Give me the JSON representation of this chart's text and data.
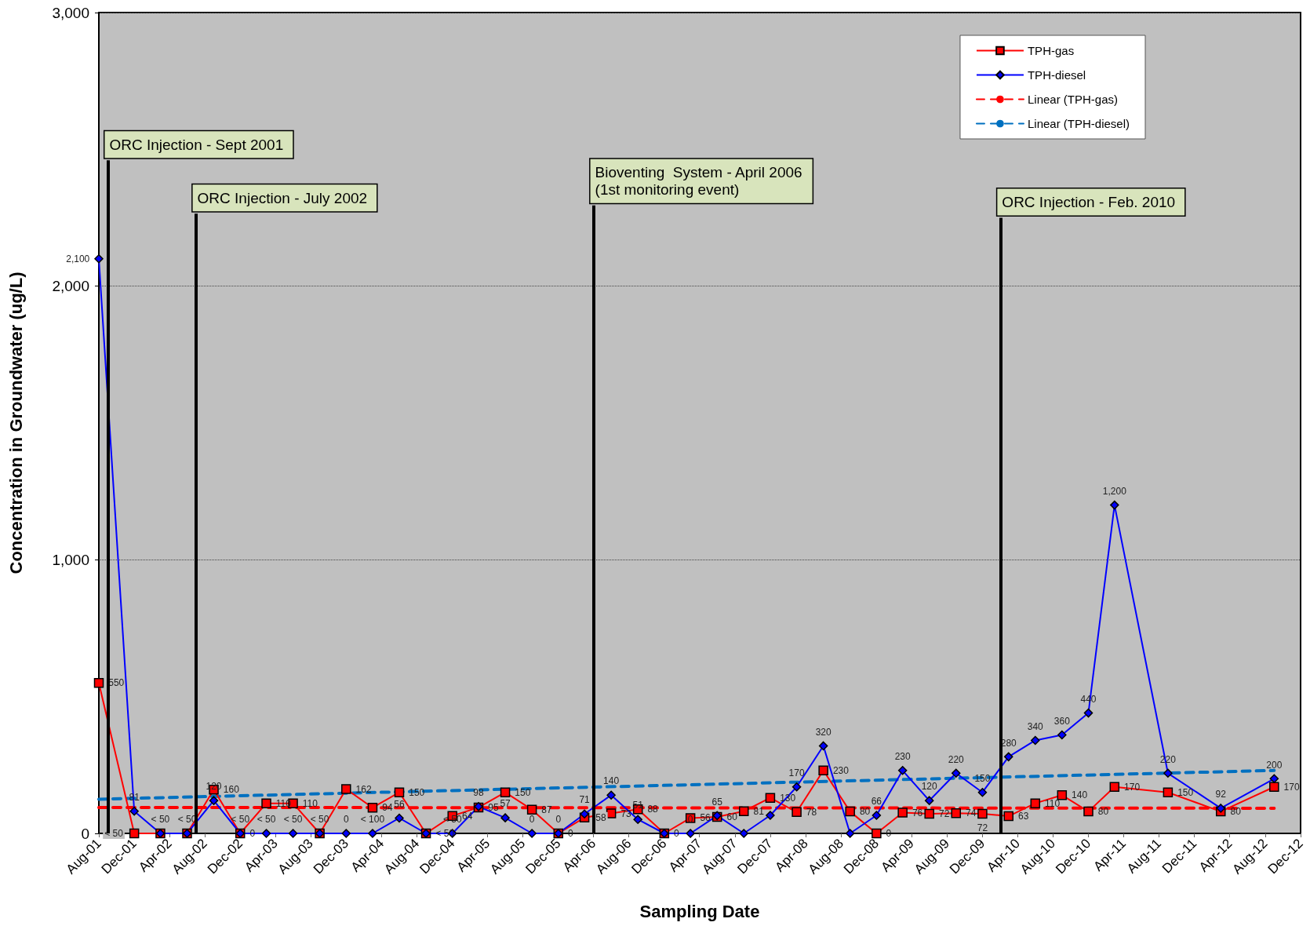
{
  "chart_data": {
    "type": "line",
    "xlabel": "Sampling Date",
    "ylabel": "Concentration in Groundwater (ug/L)",
    "x": [
      "2001-08",
      "2001-12",
      "2002-03",
      "2002-06",
      "2002-09",
      "2002-12",
      "2003-03",
      "2003-06",
      "2003-09",
      "2003-12",
      "2004-03",
      "2004-06",
      "2004-09",
      "2004-12",
      "2005-03",
      "2005-06",
      "2005-09",
      "2005-12",
      "2006-03",
      "2006-06",
      "2006-09",
      "2006-12",
      "2007-03",
      "2007-06",
      "2007-09",
      "2007-12",
      "2008-03",
      "2008-06",
      "2008-09",
      "2008-12",
      "2009-03",
      "2009-06",
      "2009-09",
      "2009-12",
      "2010-03",
      "2010-06",
      "2010-09",
      "2010-12",
      "2011-03",
      "2011-09",
      "2012-03",
      "2012-09"
    ],
    "series": [
      {
        "name": "TPH-gas",
        "color": "#ff0000",
        "marker": "square",
        "values": [
          550,
          0,
          0,
          0,
          160,
          0,
          110,
          110,
          0,
          162,
          94,
          150,
          0,
          64,
          95,
          150,
          87,
          0,
          58,
          73,
          88,
          0,
          56,
          60,
          81,
          130,
          78,
          230,
          80,
          0,
          76,
          72,
          74,
          72,
          63,
          110,
          140,
          80,
          170,
          150,
          80,
          170
        ],
        "value_labels": [
          "550",
          "< 50",
          null,
          null,
          "160",
          "0",
          "110",
          "110",
          null,
          "162",
          "94",
          "150",
          "< 50",
          "64",
          "95",
          "150",
          "87",
          "0",
          "58",
          "73",
          "88",
          "0",
          "56",
          "60",
          "81",
          "130",
          "78",
          "230",
          "80",
          "0",
          "76",
          "72",
          "74",
          "72",
          "63",
          "110",
          "140",
          "80",
          "170",
          "150",
          "80",
          "170"
        ]
      },
      {
        "name": "TPH-diesel",
        "color": "#0000ff",
        "marker": "diamond",
        "values": [
          2100,
          81,
          0,
          0,
          120,
          0,
          0,
          0,
          0,
          0,
          0,
          56,
          0,
          0,
          98,
          57,
          0,
          0,
          71,
          140,
          51,
          0,
          0,
          65,
          0,
          66,
          170,
          320,
          0,
          66,
          230,
          120,
          220,
          150,
          280,
          340,
          360,
          440,
          1200,
          220,
          92,
          200
        ],
        "value_labels": [
          "2,100",
          "81",
          "< 50",
          "< 50",
          "120",
          "< 50",
          "< 50",
          "< 50",
          "< 50",
          "0",
          "< 100",
          "56",
          null,
          "< 50",
          "98",
          "57",
          "0",
          "0",
          "71",
          "140",
          "51",
          null,
          "0",
          "65",
          null,
          null,
          "170",
          "320",
          null,
          "66",
          "230",
          "120",
          "220",
          "150",
          "280",
          "340",
          "360",
          "440",
          "1,200",
          "220",
          "92",
          "200"
        ]
      },
      {
        "name": "Linear (TPH-gas)",
        "color": "#ff0000",
        "marker": "none",
        "line_style": "dashed",
        "x": [
          "2001-08",
          "2012-09"
        ],
        "values": [
          95,
          92
        ]
      },
      {
        "name": "Linear (TPH-diesel)",
        "color": "#0070c0",
        "marker": "none",
        "line_style": "dashed",
        "x": [
          "2001-08",
          "2012-09"
        ],
        "values": [
          125,
          230
        ]
      }
    ],
    "xlim": [
      "2001-08",
      "2012-12"
    ],
    "xticks": [
      {
        "value": "2001-08",
        "label": "Aug-01"
      },
      {
        "value": "2001-12",
        "label": "Dec-01"
      },
      {
        "value": "2002-04",
        "label": "Apr-02"
      },
      {
        "value": "2002-08",
        "label": "Aug-02"
      },
      {
        "value": "2002-12",
        "label": "Dec-02"
      },
      {
        "value": "2003-04",
        "label": "Apr-03"
      },
      {
        "value": "2003-08",
        "label": "Aug-03"
      },
      {
        "value": "2003-12",
        "label": "Dec-03"
      },
      {
        "value": "2004-04",
        "label": "Apr-04"
      },
      {
        "value": "2004-08",
        "label": "Aug-04"
      },
      {
        "value": "2004-12",
        "label": "Dec-04"
      },
      {
        "value": "2005-04",
        "label": "Apr-05"
      },
      {
        "value": "2005-08",
        "label": "Aug-05"
      },
      {
        "value": "2005-12",
        "label": "Dec-05"
      },
      {
        "value": "2006-04",
        "label": "Apr-06"
      },
      {
        "value": "2006-08",
        "label": "Aug-06"
      },
      {
        "value": "2006-12",
        "label": "Dec-06"
      },
      {
        "value": "2007-04",
        "label": "Apr-07"
      },
      {
        "value": "2007-08",
        "label": "Aug-07"
      },
      {
        "value": "2007-12",
        "label": "Dec-07"
      },
      {
        "value": "2008-04",
        "label": "Apr-08"
      },
      {
        "value": "2008-08",
        "label": "Aug-08"
      },
      {
        "value": "2008-12",
        "label": "Dec-08"
      },
      {
        "value": "2009-04",
        "label": "Apr-09"
      },
      {
        "value": "2009-08",
        "label": "Aug-09"
      },
      {
        "value": "2009-12",
        "label": "Dec-09"
      },
      {
        "value": "2010-04",
        "label": "Apr-10"
      },
      {
        "value": "2010-08",
        "label": "Aug-10"
      },
      {
        "value": "2010-12",
        "label": "Dec-10"
      },
      {
        "value": "2011-04",
        "label": "Apr-11"
      },
      {
        "value": "2011-08",
        "label": "Aug-11"
      },
      {
        "value": "2011-12",
        "label": "Dec-11"
      },
      {
        "value": "2012-04",
        "label": "Apr-12"
      },
      {
        "value": "2012-08",
        "label": "Aug-12"
      },
      {
        "value": "2012-12",
        "label": "Dec-12"
      }
    ],
    "ylim": [
      0,
      3000
    ],
    "yticks": [
      0,
      {
        "value": 1000,
        "label": "1,000"
      },
      {
        "value": 2000,
        "label": "2,000"
      },
      {
        "value": 3000,
        "label": "3,000"
      }
    ],
    "grid": "y",
    "legend": "top right",
    "ref_lines": [
      {
        "axis": "x",
        "value": "2001-09",
        "label": "ORC Injection - Sept 2001",
        "color": "#000000"
      },
      {
        "axis": "x",
        "value": "2002-07",
        "label": "ORC Injection - July 2002",
        "color": "#000000"
      },
      {
        "axis": "x",
        "value": "2006-04",
        "label": "Bioventing  System - April 2006\n(1st monitoring event)",
        "color": "#000000"
      },
      {
        "axis": "x",
        "value": "2010-02",
        "label": "ORC Injection - Feb. 2010",
        "color": "#000000"
      }
    ]
  }
}
